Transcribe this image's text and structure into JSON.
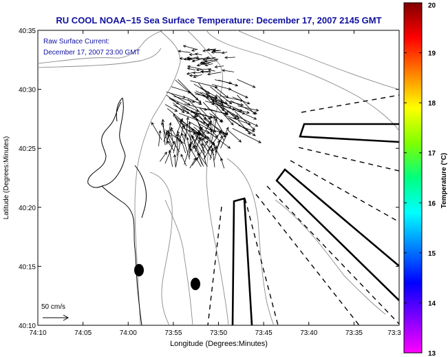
{
  "chart_data": {
    "type": "heatmap",
    "title": "RU COOL  NOAA−15  Sea Surface Temperature:  December 17, 2007 2145 GMT",
    "annotation": [
      "Raw Surface Current:",
      "December 17, 2007 23:00 GMT"
    ],
    "xlabel": "Longitude (Degrees:Minutes)",
    "ylabel": "Latitude (Degrees:Minutes)",
    "x_ticks": [
      "74:10",
      "74:05",
      "74:00",
      "73:55",
      "73:50",
      "73:45",
      "73:40",
      "73:35",
      "73:3"
    ],
    "y_ticks": [
      "40:10",
      "40:15",
      "40:20",
      "40:25",
      "40:30",
      "40:35"
    ],
    "xlim": [
      "74:10 W",
      "73:30 W"
    ],
    "ylim": [
      "40:10 N",
      "40:35 N"
    ],
    "grid": false,
    "scale_vector_label": "50 cm/s",
    "colorbar": {
      "label": "Temperature (°C)",
      "min": 13,
      "max": 20,
      "ticks": [
        "13",
        "14",
        "15",
        "16",
        "17",
        "18",
        "19",
        "20"
      ],
      "colors": [
        "#ff00ff",
        "#8000ff",
        "#0000ff",
        "#0080ff",
        "#00ffff",
        "#00ff80",
        "#80ff00",
        "#ffff00",
        "#ff8000",
        "#ff0000",
        "#800000"
      ]
    },
    "sst_field": "no SST data shown (white)",
    "current_vectors": "raw HF radar surface current vectors near the harbor entrance, ~40:23-40:33 N, 73:53-73:57 W",
    "overlays": [
      "coastline",
      "bathymetry contours",
      "shipping lane boundaries (solid)",
      "dashed lines"
    ]
  }
}
